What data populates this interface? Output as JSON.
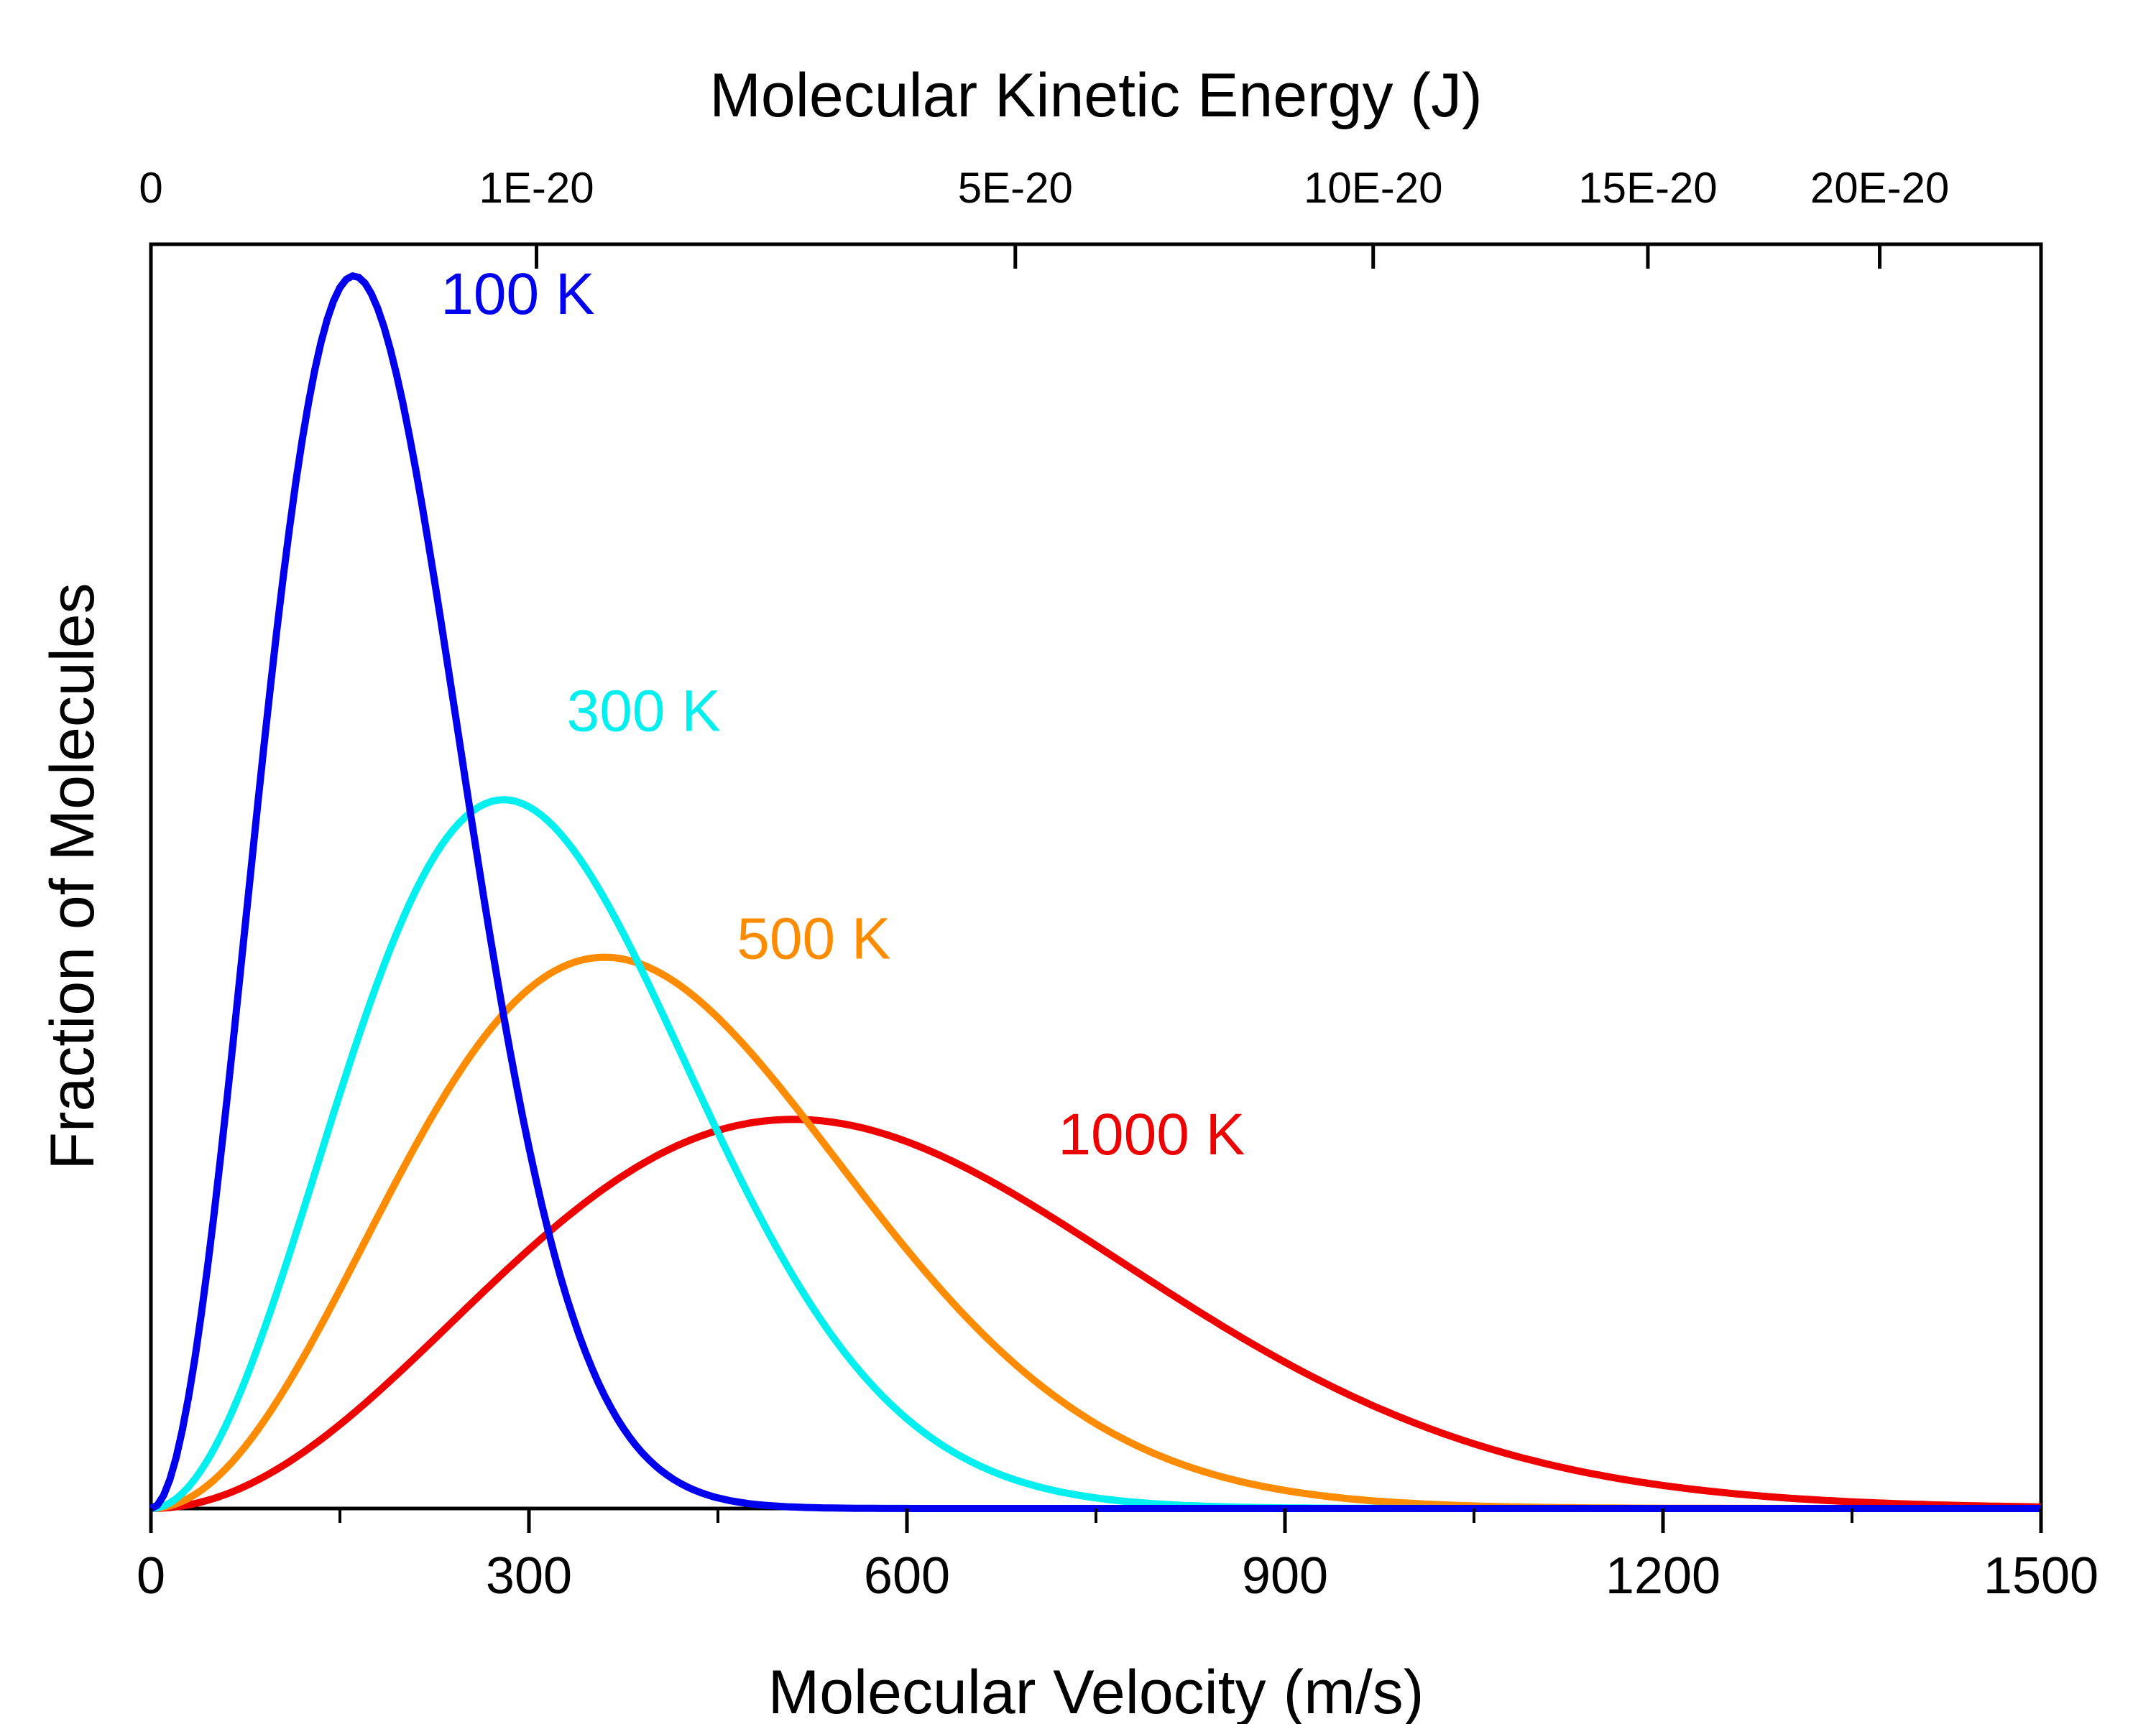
{
  "chart_data": {
    "type": "line",
    "title": "",
    "xlabel": "Molecular Velocity (m/s)",
    "ylabel": "Fraction of Molecules",
    "x2label": "Molecular Kinetic Energy (J)",
    "xlim": [
      0,
      1500
    ],
    "x_ticks": [
      {
        "value": 0,
        "label": "0"
      },
      {
        "value": 300,
        "label": "300"
      },
      {
        "value": 600,
        "label": "600"
      },
      {
        "value": 900,
        "label": "900"
      },
      {
        "value": 1200,
        "label": "1200"
      },
      {
        "value": 1500,
        "label": "1500"
      }
    ],
    "x_minor_ticks": [
      150,
      450,
      750,
      1050,
      1350
    ],
    "x2_ticks": [
      {
        "value": 0,
        "label": "0"
      },
      {
        "value": 306,
        "label": "1E-20"
      },
      {
        "value": 686,
        "label": "5E-20"
      },
      {
        "value": 970,
        "label": "10E-20"
      },
      {
        "value": 1188,
        "label": "15E-20"
      },
      {
        "value": 1372,
        "label": "20E-20"
      }
    ],
    "y_tick_labels": false,
    "grid": false,
    "legend": "none",
    "series": [
      {
        "name": "100 K",
        "color": "#0000ee",
        "mode_velocity": 161,
        "label_x": 230,
        "label_y": 0.945
      },
      {
        "name": "300 K",
        "color": "#00f0f0",
        "mode_velocity": 280,
        "label_x": 330,
        "label_y": 0.615
      },
      {
        "name": "500 K",
        "color": "#ff8c00",
        "mode_velocity": 360,
        "label_x": 465,
        "label_y": 0.435
      },
      {
        "name": "1000 K",
        "color": "#ee0000",
        "mode_velocity": 510,
        "label_x": 720,
        "label_y": 0.28
      }
    ]
  }
}
